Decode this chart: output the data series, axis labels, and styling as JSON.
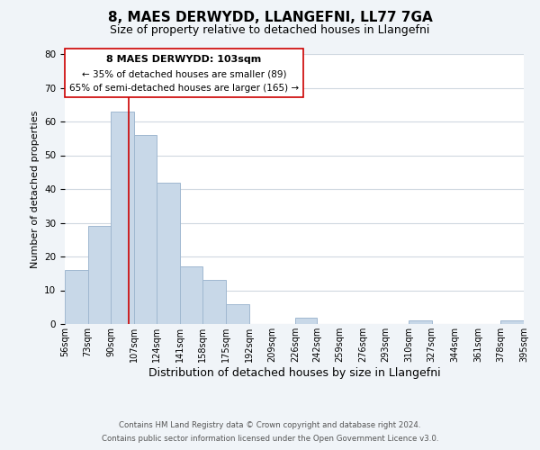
{
  "title": "8, MAES DERWYDD, LLANGEFNI, LL77 7GA",
  "subtitle": "Size of property relative to detached houses in Llangefni",
  "xlabel": "Distribution of detached houses by size in Llangefni",
  "ylabel": "Number of detached properties",
  "bar_edges": [
    56,
    73,
    90,
    107,
    124,
    141,
    158,
    175,
    192,
    209,
    226,
    242,
    259,
    276,
    293,
    310,
    327,
    344,
    361,
    378,
    395
  ],
  "bar_heights": [
    16,
    29,
    63,
    56,
    42,
    17,
    13,
    6,
    0,
    0,
    2,
    0,
    0,
    0,
    0,
    1,
    0,
    0,
    0,
    1
  ],
  "bar_color": "#c8d8e8",
  "bar_edge_color": "#a0b8d0",
  "property_line_x": 103,
  "property_line_color": "#cc0000",
  "ylim": [
    0,
    80
  ],
  "yticks": [
    0,
    10,
    20,
    30,
    40,
    50,
    60,
    70,
    80
  ],
  "annotation_line1": "8 MAES DERWYDD: 103sqm",
  "annotation_line2": "← 35% of detached houses are smaller (89)",
  "annotation_line3": "65% of semi-detached houses are larger (165) →",
  "footer_line1": "Contains HM Land Registry data © Crown copyright and database right 2024.",
  "footer_line2": "Contains public sector information licensed under the Open Government Licence v3.0.",
  "background_color": "#f0f4f8",
  "plot_bg_color": "#ffffff",
  "grid_color": "#d0d8e0",
  "title_fontsize": 11,
  "subtitle_fontsize": 9,
  "xlabel_fontsize": 9,
  "ylabel_fontsize": 8,
  "tick_labels": [
    "56sqm",
    "73sqm",
    "90sqm",
    "107sqm",
    "124sqm",
    "141sqm",
    "158sqm",
    "175sqm",
    "192sqm",
    "209sqm",
    "226sqm",
    "242sqm",
    "259sqm",
    "276sqm",
    "293sqm",
    "310sqm",
    "327sqm",
    "344sqm",
    "361sqm",
    "378sqm",
    "395sqm"
  ]
}
